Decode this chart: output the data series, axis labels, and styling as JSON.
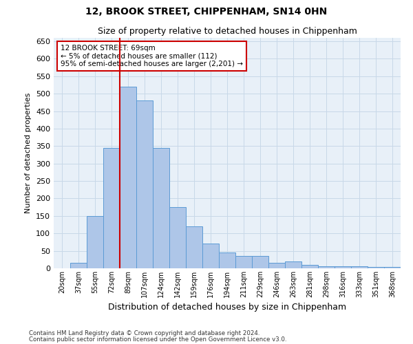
{
  "title": "12, BROOK STREET, CHIPPENHAM, SN14 0HN",
  "subtitle": "Size of property relative to detached houses in Chippenham",
  "xlabel": "Distribution of detached houses by size in Chippenham",
  "ylabel": "Number of detached properties",
  "footnote1": "Contains HM Land Registry data © Crown copyright and database right 2024.",
  "footnote2": "Contains public sector information licensed under the Open Government Licence v3.0.",
  "categories": [
    "20sqm",
    "37sqm",
    "55sqm",
    "72sqm",
    "89sqm",
    "107sqm",
    "124sqm",
    "142sqm",
    "159sqm",
    "176sqm",
    "194sqm",
    "211sqm",
    "229sqm",
    "246sqm",
    "263sqm",
    "281sqm",
    "298sqm",
    "316sqm",
    "333sqm",
    "351sqm",
    "368sqm"
  ],
  "values": [
    0,
    15,
    150,
    345,
    520,
    480,
    345,
    175,
    120,
    70,
    45,
    35,
    35,
    15,
    20,
    10,
    5,
    5,
    5,
    3,
    3
  ],
  "bar_color": "#aec6e8",
  "bar_edge_color": "#5b9bd5",
  "grid_color": "#c8d8e8",
  "background_color": "#e8f0f8",
  "vline_color": "#cc0000",
  "vline_x": 3.5,
  "annotation_text": "12 BROOK STREET: 69sqm\n← 5% of detached houses are smaller (112)\n95% of semi-detached houses are larger (2,201) →",
  "annotation_box_color": "#ffffff",
  "annotation_box_edge": "#cc0000",
  "ylim": [
    0,
    660
  ],
  "yticks": [
    0,
    50,
    100,
    150,
    200,
    250,
    300,
    350,
    400,
    450,
    500,
    550,
    600,
    650
  ]
}
